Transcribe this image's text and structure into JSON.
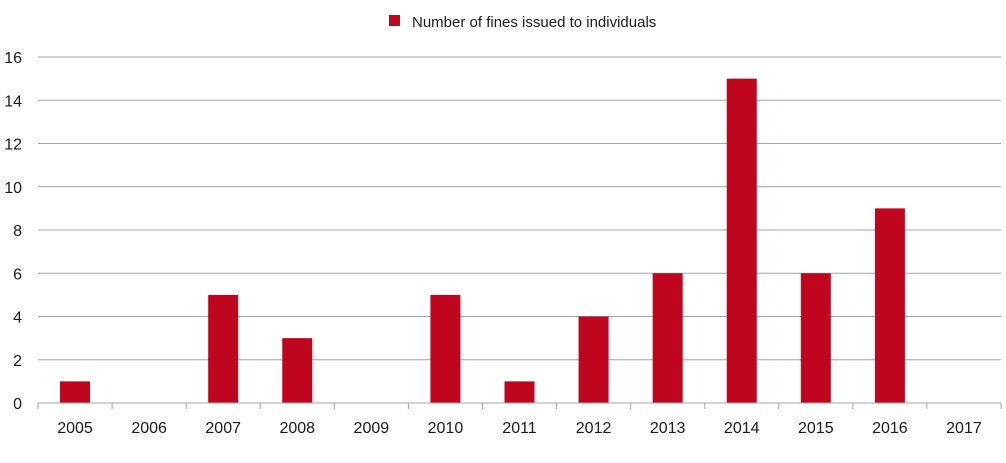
{
  "chart_data": {
    "type": "bar",
    "categories": [
      "2005",
      "2006",
      "2007",
      "2008",
      "2009",
      "2010",
      "2011",
      "2012",
      "2013",
      "2014",
      "2015",
      "2016",
      "2017"
    ],
    "series": [
      {
        "name": "Number of fines issued to individuals",
        "values": [
          1,
          0,
          5,
          3,
          0,
          5,
          1,
          4,
          6,
          15,
          6,
          9,
          0
        ],
        "color": "#c0051e"
      }
    ],
    "yticks": [
      "0",
      "2",
      "4",
      "6",
      "8",
      "10",
      "12",
      "14",
      "16"
    ],
    "ylim": [
      0,
      16
    ],
    "grid": true,
    "legend": "top-center",
    "colors": {
      "bar": "#c0051e",
      "grid": "#a6a6a6",
      "axis": "#a6a6a6"
    }
  }
}
